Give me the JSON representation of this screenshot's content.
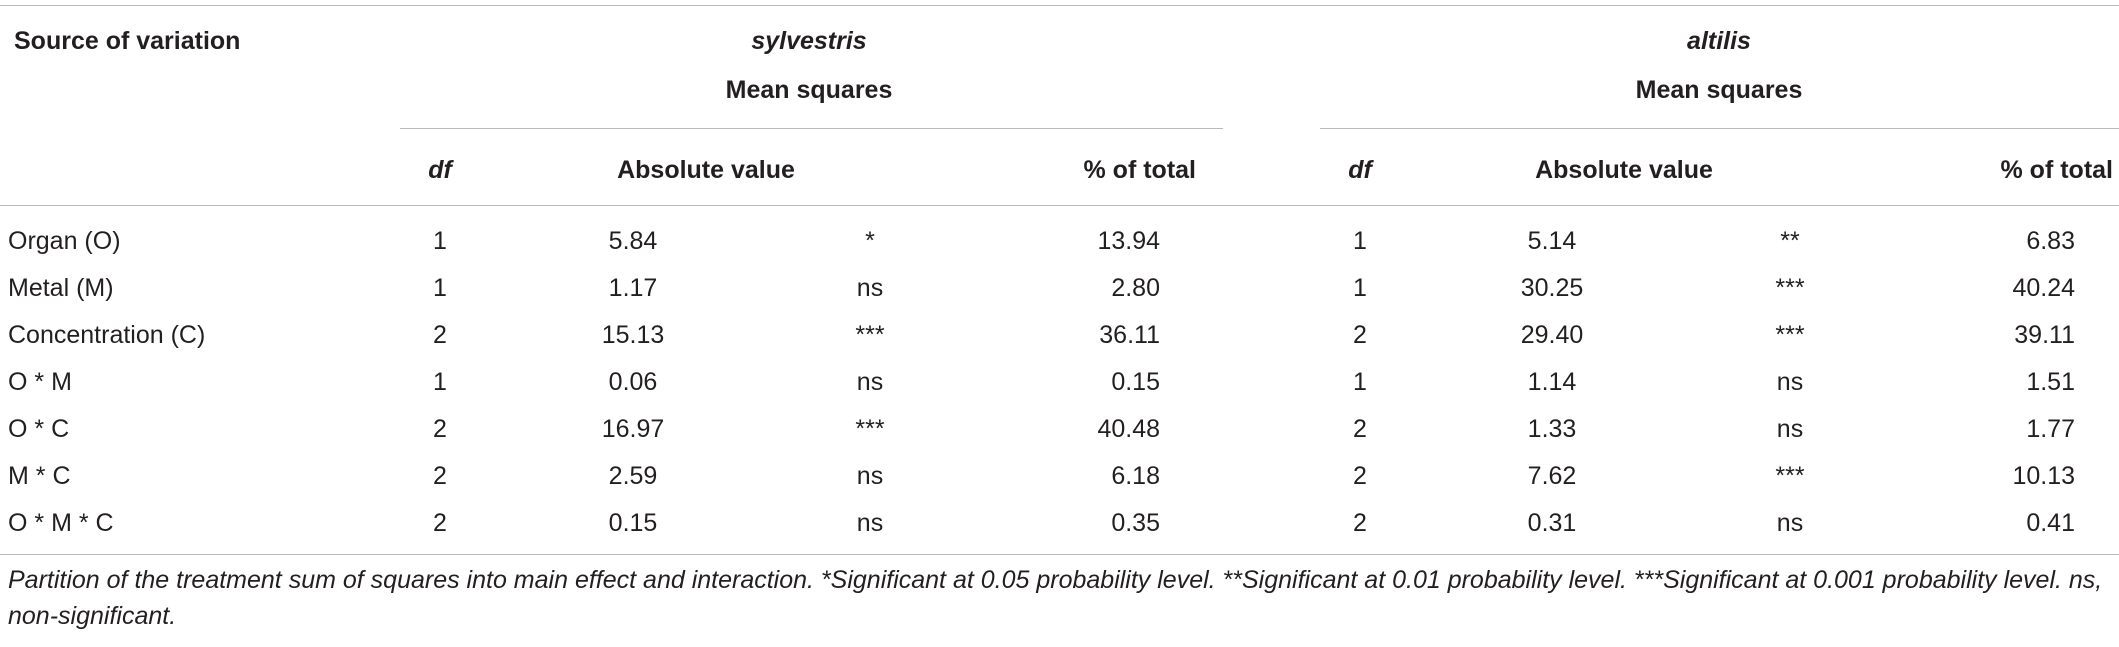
{
  "header": {
    "source_label": "Source of variation",
    "groups": [
      {
        "species": "sylvestris",
        "subtitle": "Mean squares"
      },
      {
        "species": "altilis",
        "subtitle": "Mean squares"
      }
    ],
    "columns": {
      "df": "df",
      "absolute": "Absolute value",
      "percent": "% of total"
    }
  },
  "rows": [
    {
      "source": "Organ (O)",
      "syl": {
        "df": "1",
        "value": "5.84",
        "sig": "*",
        "pct": "13.94"
      },
      "alt": {
        "df": "1",
        "value": "5.14",
        "sig": "**",
        "pct": "6.83"
      }
    },
    {
      "source": "Metal (M)",
      "syl": {
        "df": "1",
        "value": "1.17",
        "sig": "ns",
        "pct": "2.80"
      },
      "alt": {
        "df": "1",
        "value": "30.25",
        "sig": "***",
        "pct": "40.24"
      }
    },
    {
      "source": "Concentration (C)",
      "syl": {
        "df": "2",
        "value": "15.13",
        "sig": "***",
        "pct": "36.11"
      },
      "alt": {
        "df": "2",
        "value": "29.40",
        "sig": "***",
        "pct": "39.11"
      }
    },
    {
      "source": "O * M",
      "syl": {
        "df": "1",
        "value": "0.06",
        "sig": "ns",
        "pct": "0.15"
      },
      "alt": {
        "df": "1",
        "value": "1.14",
        "sig": "ns",
        "pct": "1.51"
      }
    },
    {
      "source": "O * C",
      "syl": {
        "df": "2",
        "value": "16.97",
        "sig": "***",
        "pct": "40.48"
      },
      "alt": {
        "df": "2",
        "value": "1.33",
        "sig": "ns",
        "pct": "1.77"
      }
    },
    {
      "source": "M * C",
      "syl": {
        "df": "2",
        "value": "2.59",
        "sig": "ns",
        "pct": "6.18"
      },
      "alt": {
        "df": "2",
        "value": "7.62",
        "sig": "***",
        "pct": "10.13"
      }
    },
    {
      "source": "O * M * C",
      "syl": {
        "df": "2",
        "value": "0.15",
        "sig": "ns",
        "pct": "0.35"
      },
      "alt": {
        "df": "2",
        "value": "0.31",
        "sig": "ns",
        "pct": "0.41"
      }
    }
  ],
  "footnote": "Partition of the treatment sum of squares into main effect and interaction. *Significant at 0.05 probability level. **Significant at 0.01 probability level. ***Significant at 0.001 probability level. ns, non-significant."
}
